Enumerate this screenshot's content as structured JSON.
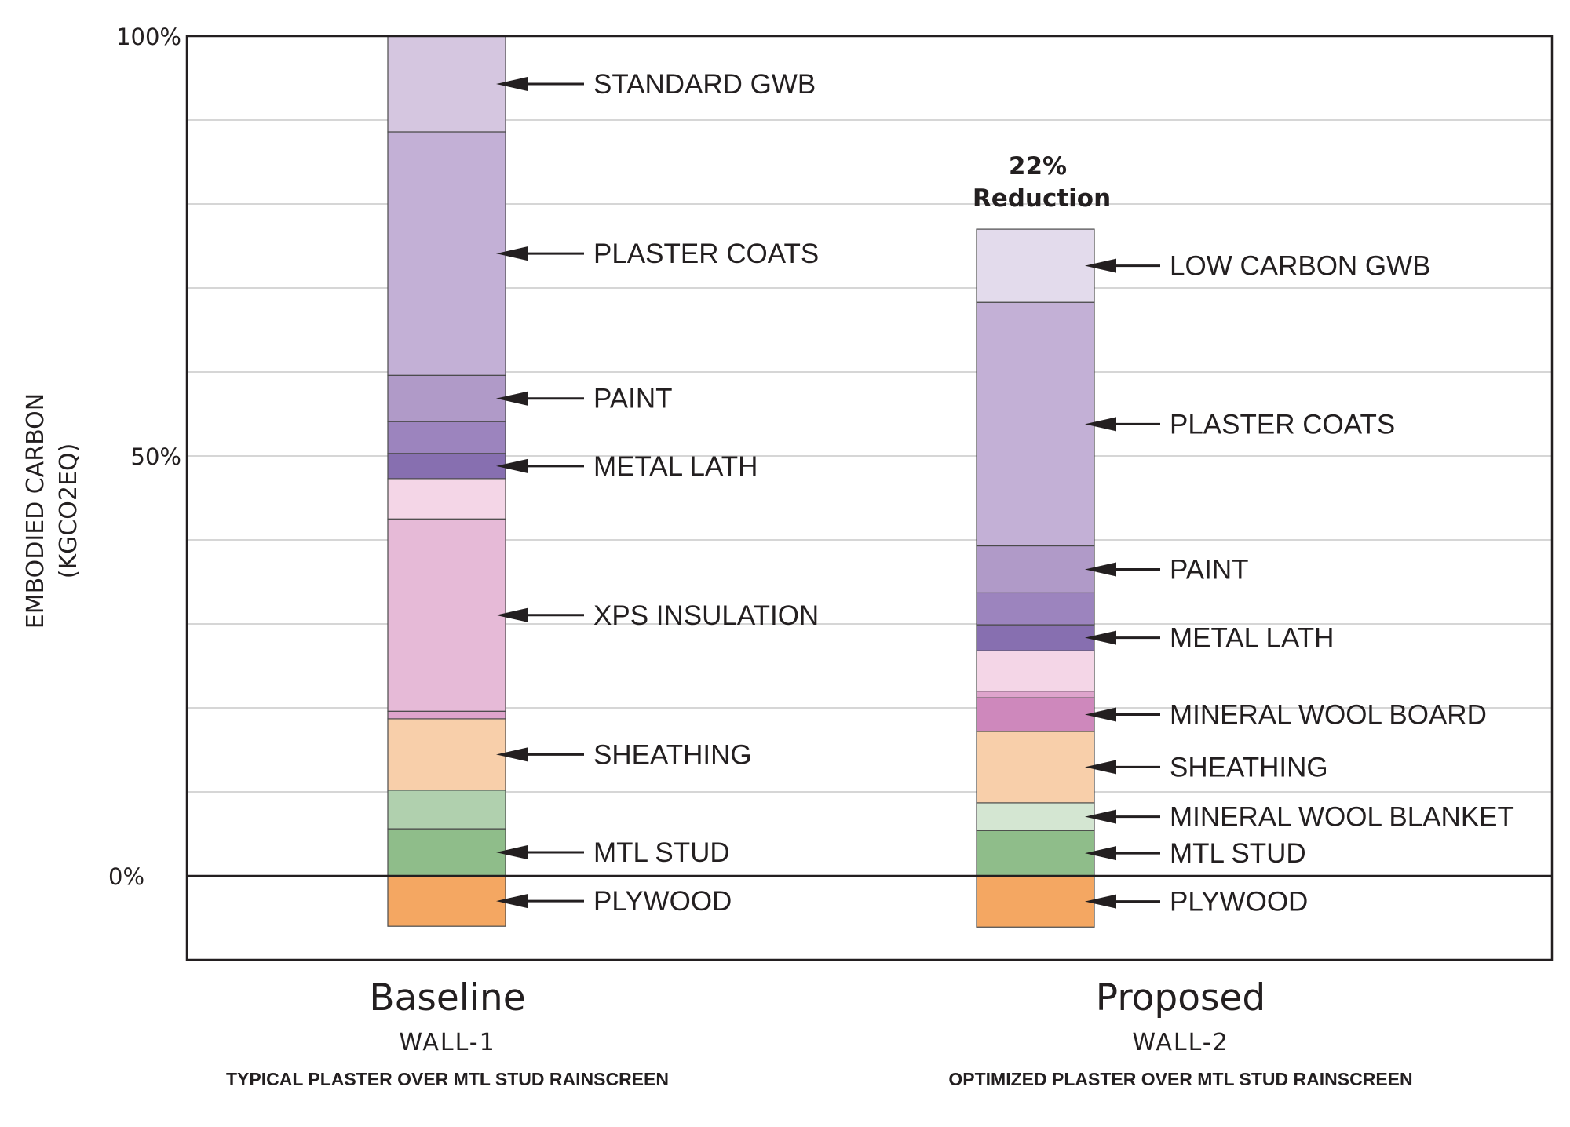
{
  "chart_data": {
    "type": "bar",
    "stacked": true,
    "ylabel_line1": "EMBODIED CARBON",
    "ylabel_line2": "(KGCO2EQ)",
    "ylim": [
      -10,
      100
    ],
    "grid": true,
    "grid_step": 10,
    "yticks": [
      {
        "value": 100,
        "label": "100%"
      },
      {
        "value": 50,
        "label": "50%"
      },
      {
        "value": 0,
        "label": "0%"
      }
    ],
    "annotation": {
      "line1": "22%",
      "line2": "Reduction"
    },
    "bars": [
      {
        "category": "Baseline",
        "code": "WALL-1",
        "description": "TYPICAL PLASTER OVER MTL STUD RAINSCREEN",
        "negative": {
          "label": "PLYWOOD",
          "value": -6.0,
          "color": "#f4a762"
        },
        "segments": [
          {
            "label": "MTL STUD",
            "value": 5.6,
            "color": "#8fbd8a"
          },
          {
            "label": "",
            "value": 4.6,
            "color": "#b0d0ae"
          },
          {
            "label": "SHEATHING",
            "value": 8.5,
            "color": "#f8cfaa"
          },
          {
            "label": "",
            "value": 0.9,
            "color": "#dea4cc"
          },
          {
            "label": "XPS INSULATION",
            "value": 22.9,
            "color": "#e6bad7"
          },
          {
            "label": "",
            "value": 4.8,
            "color": "#f4d6e7"
          },
          {
            "label": "METAL LATH",
            "value": 3.0,
            "color": "#876fb0"
          },
          {
            "label": "",
            "value": 3.8,
            "color": "#9c84be"
          },
          {
            "label": "PAINT",
            "value": 5.5,
            "color": "#b09ac8"
          },
          {
            "label": "PLASTER COATS",
            "value": 29.0,
            "color": "#c3b0d6"
          },
          {
            "label": "STANDARD GWB",
            "value": 11.4,
            "color": "#d5c6e0"
          }
        ]
      },
      {
        "category": "Proposed",
        "code": "WALL-2",
        "description": "OPTIMIZED PLASTER OVER MTL STUD RAINSCREEN",
        "negative": {
          "label": "PLYWOOD",
          "value": -6.1,
          "color": "#f4a762"
        },
        "segments": [
          {
            "label": "MTL STUD",
            "value": 5.4,
            "color": "#8fbd8a"
          },
          {
            "label": "MINERAL WOOL BLANKET",
            "value": 3.3,
            "color": "#d4e6d2"
          },
          {
            "label": "SHEATHING",
            "value": 8.5,
            "color": "#f8cfaa"
          },
          {
            "label": "MINERAL WOOL BOARD",
            "value": 4.0,
            "color": "#ce88bc"
          },
          {
            "label": "",
            "value": 0.8,
            "color": "#dea4cc"
          },
          {
            "label": "",
            "value": 4.8,
            "color": "#f4d6e7"
          },
          {
            "label": "METAL LATH",
            "value": 3.1,
            "color": "#876fb0"
          },
          {
            "label": "",
            "value": 3.8,
            "color": "#9c84be"
          },
          {
            "label": "PAINT",
            "value": 5.6,
            "color": "#b09ac8"
          },
          {
            "label": "PLASTER COATS",
            "value": 29.0,
            "color": "#c3b0d6"
          },
          {
            "label": "LOW CARBON GWB",
            "value": 8.7,
            "color": "#e3dbec"
          }
        ]
      }
    ]
  }
}
